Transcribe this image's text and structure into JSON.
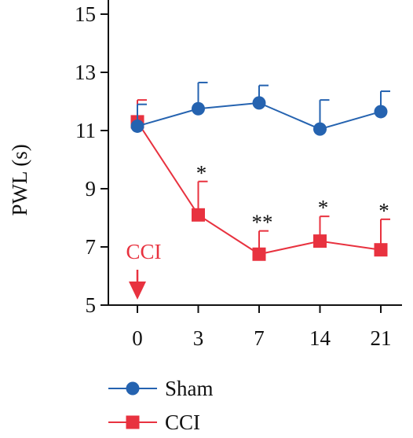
{
  "chart_data": {
    "type": "line",
    "ylabel": "PWL (s)",
    "xlabel": "",
    "categories": [
      "0",
      "3",
      "7",
      "14",
      "21"
    ],
    "yticks": [
      5,
      7,
      9,
      11,
      13,
      15
    ],
    "ylim": [
      5,
      15.5
    ],
    "series": [
      {
        "name": "Sham",
        "color": "#2563b0",
        "marker": "circle",
        "values": [
          11.15,
          11.75,
          11.95,
          11.05,
          11.65
        ],
        "error_upper": [
          11.9,
          12.65,
          12.55,
          12.05,
          12.35
        ]
      },
      {
        "name": "CCI",
        "color": "#e8323f",
        "marker": "square",
        "values": [
          11.3,
          8.1,
          6.75,
          7.2,
          6.9
        ],
        "error_upper": [
          12.05,
          9.25,
          7.55,
          8.05,
          7.95
        ]
      }
    ],
    "significance": [
      "",
      "*",
      "**",
      "*",
      "*"
    ],
    "annotation": {
      "text": "CCI",
      "color": "#e8323f",
      "at_category": "0"
    },
    "legend_position": "bottom-left",
    "grid": false
  }
}
